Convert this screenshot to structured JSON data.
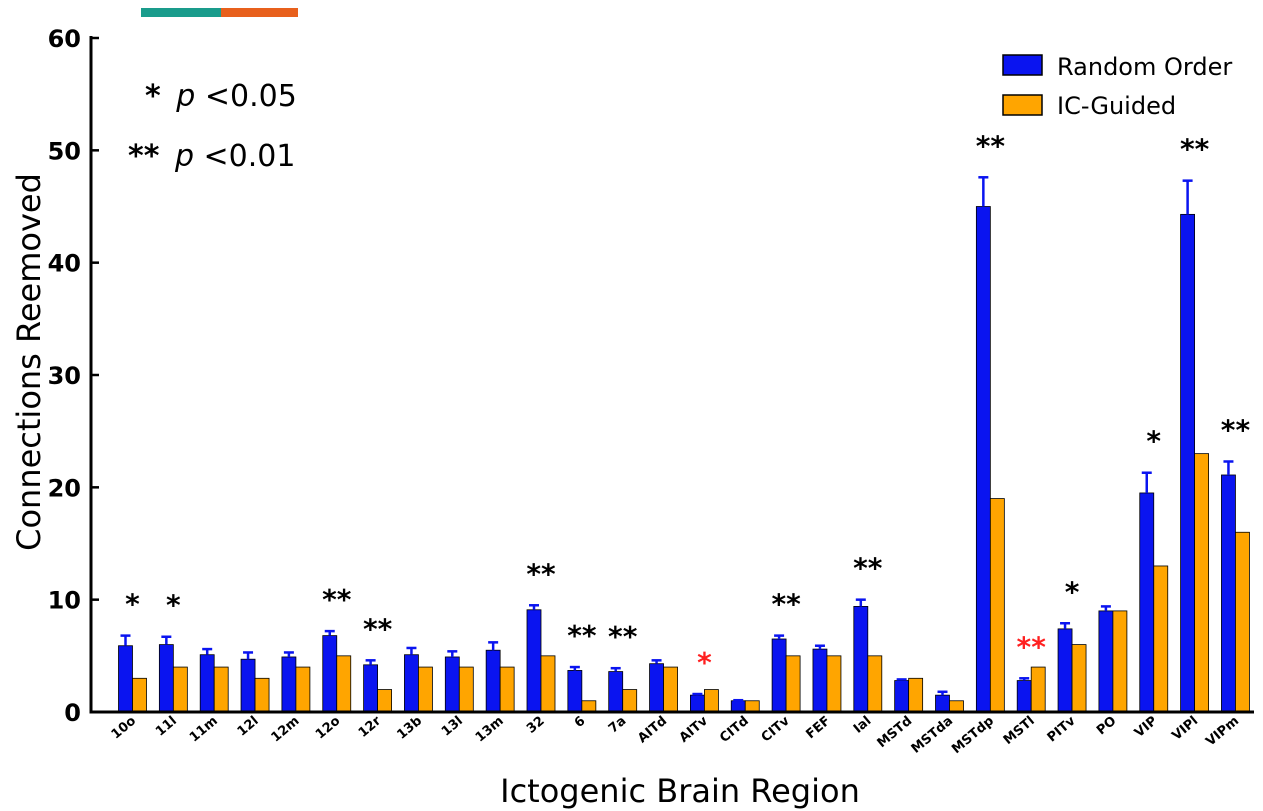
{
  "chart_data": {
    "type": "bar",
    "title": "",
    "xlabel": "Ictogenic Brain Region",
    "ylabel": "Connections Reemoved",
    "ylim": [
      0,
      60
    ],
    "yticks": [
      "0",
      "10",
      "20",
      "30",
      "40",
      "50",
      "60"
    ],
    "grid": false,
    "legend_position": "top-right",
    "categories": [
      "10o",
      "11l",
      "11m",
      "12l",
      "12m",
      "12o",
      "12r",
      "13b",
      "13l",
      "13m",
      "32",
      "6",
      "7a",
      "AITd",
      "AITv",
      "CITd",
      "CITv",
      "FEF",
      "Ial",
      "MSTd",
      "MSTda",
      "MSTdp",
      "MSTl",
      "PITv",
      "PO",
      "VIP",
      "VIPl",
      "VIPm"
    ],
    "series": [
      {
        "name": "Random Order",
        "color": "#0a14f0",
        "values": [
          5.9,
          6.0,
          5.1,
          4.7,
          4.9,
          6.8,
          4.2,
          5.1,
          4.9,
          5.5,
          9.1,
          3.7,
          3.6,
          4.3,
          1.5,
          1.0,
          6.5,
          5.6,
          9.4,
          2.8,
          1.5,
          45.0,
          2.8,
          7.4,
          9.0,
          19.5,
          44.3,
          21.1
        ],
        "errors": [
          0.9,
          0.7,
          0.5,
          0.6,
          0.4,
          0.4,
          0.4,
          0.6,
          0.5,
          0.7,
          0.4,
          0.3,
          0.3,
          0.3,
          0.1,
          0.05,
          0.3,
          0.3,
          0.6,
          0.1,
          0.3,
          2.6,
          0.2,
          0.5,
          0.4,
          1.8,
          3.0,
          1.2
        ]
      },
      {
        "name": "IC-Guided",
        "color": "#ffa500",
        "values": [
          3,
          4,
          4,
          3,
          4,
          5,
          2,
          4,
          4,
          4,
          5,
          1,
          2,
          4,
          2,
          1,
          5,
          5,
          5,
          3,
          1,
          19,
          4,
          6,
          9,
          13,
          23,
          16
        ]
      }
    ],
    "significance": [
      {
        "category": "10o",
        "label": "*",
        "color": "#000000"
      },
      {
        "category": "11l",
        "label": "*",
        "color": "#000000"
      },
      {
        "category": "12o",
        "label": "**",
        "color": "#000000"
      },
      {
        "category": "12r",
        "label": "**",
        "color": "#000000"
      },
      {
        "category": "32",
        "label": "**",
        "color": "#000000"
      },
      {
        "category": "6",
        "label": "**",
        "color": "#000000"
      },
      {
        "category": "7a",
        "label": "**",
        "color": "#000000"
      },
      {
        "category": "AITv",
        "label": "*",
        "color": "#ff2020"
      },
      {
        "category": "CITv",
        "label": "**",
        "color": "#000000"
      },
      {
        "category": "Ial",
        "label": "**",
        "color": "#000000"
      },
      {
        "category": "MSTdp",
        "label": "**",
        "color": "#000000"
      },
      {
        "category": "MSTl",
        "label": "**",
        "color": "#ff2020"
      },
      {
        "category": "PITv",
        "label": "*",
        "color": "#000000"
      },
      {
        "category": "VIP",
        "label": "*",
        "color": "#000000"
      },
      {
        "category": "VIPl",
        "label": "**",
        "color": "#000000"
      },
      {
        "category": "VIPm",
        "label": "**",
        "color": "#000000"
      }
    ],
    "annotations": {
      "single_star": "*",
      "single_star_p": "p",
      "single_star_value": "<0.05",
      "double_star": "**",
      "double_star_p": "p",
      "double_star_value": "<0.01"
    },
    "top_swatch_colors": [
      "#1a9c8c",
      "#e8601c"
    ]
  }
}
